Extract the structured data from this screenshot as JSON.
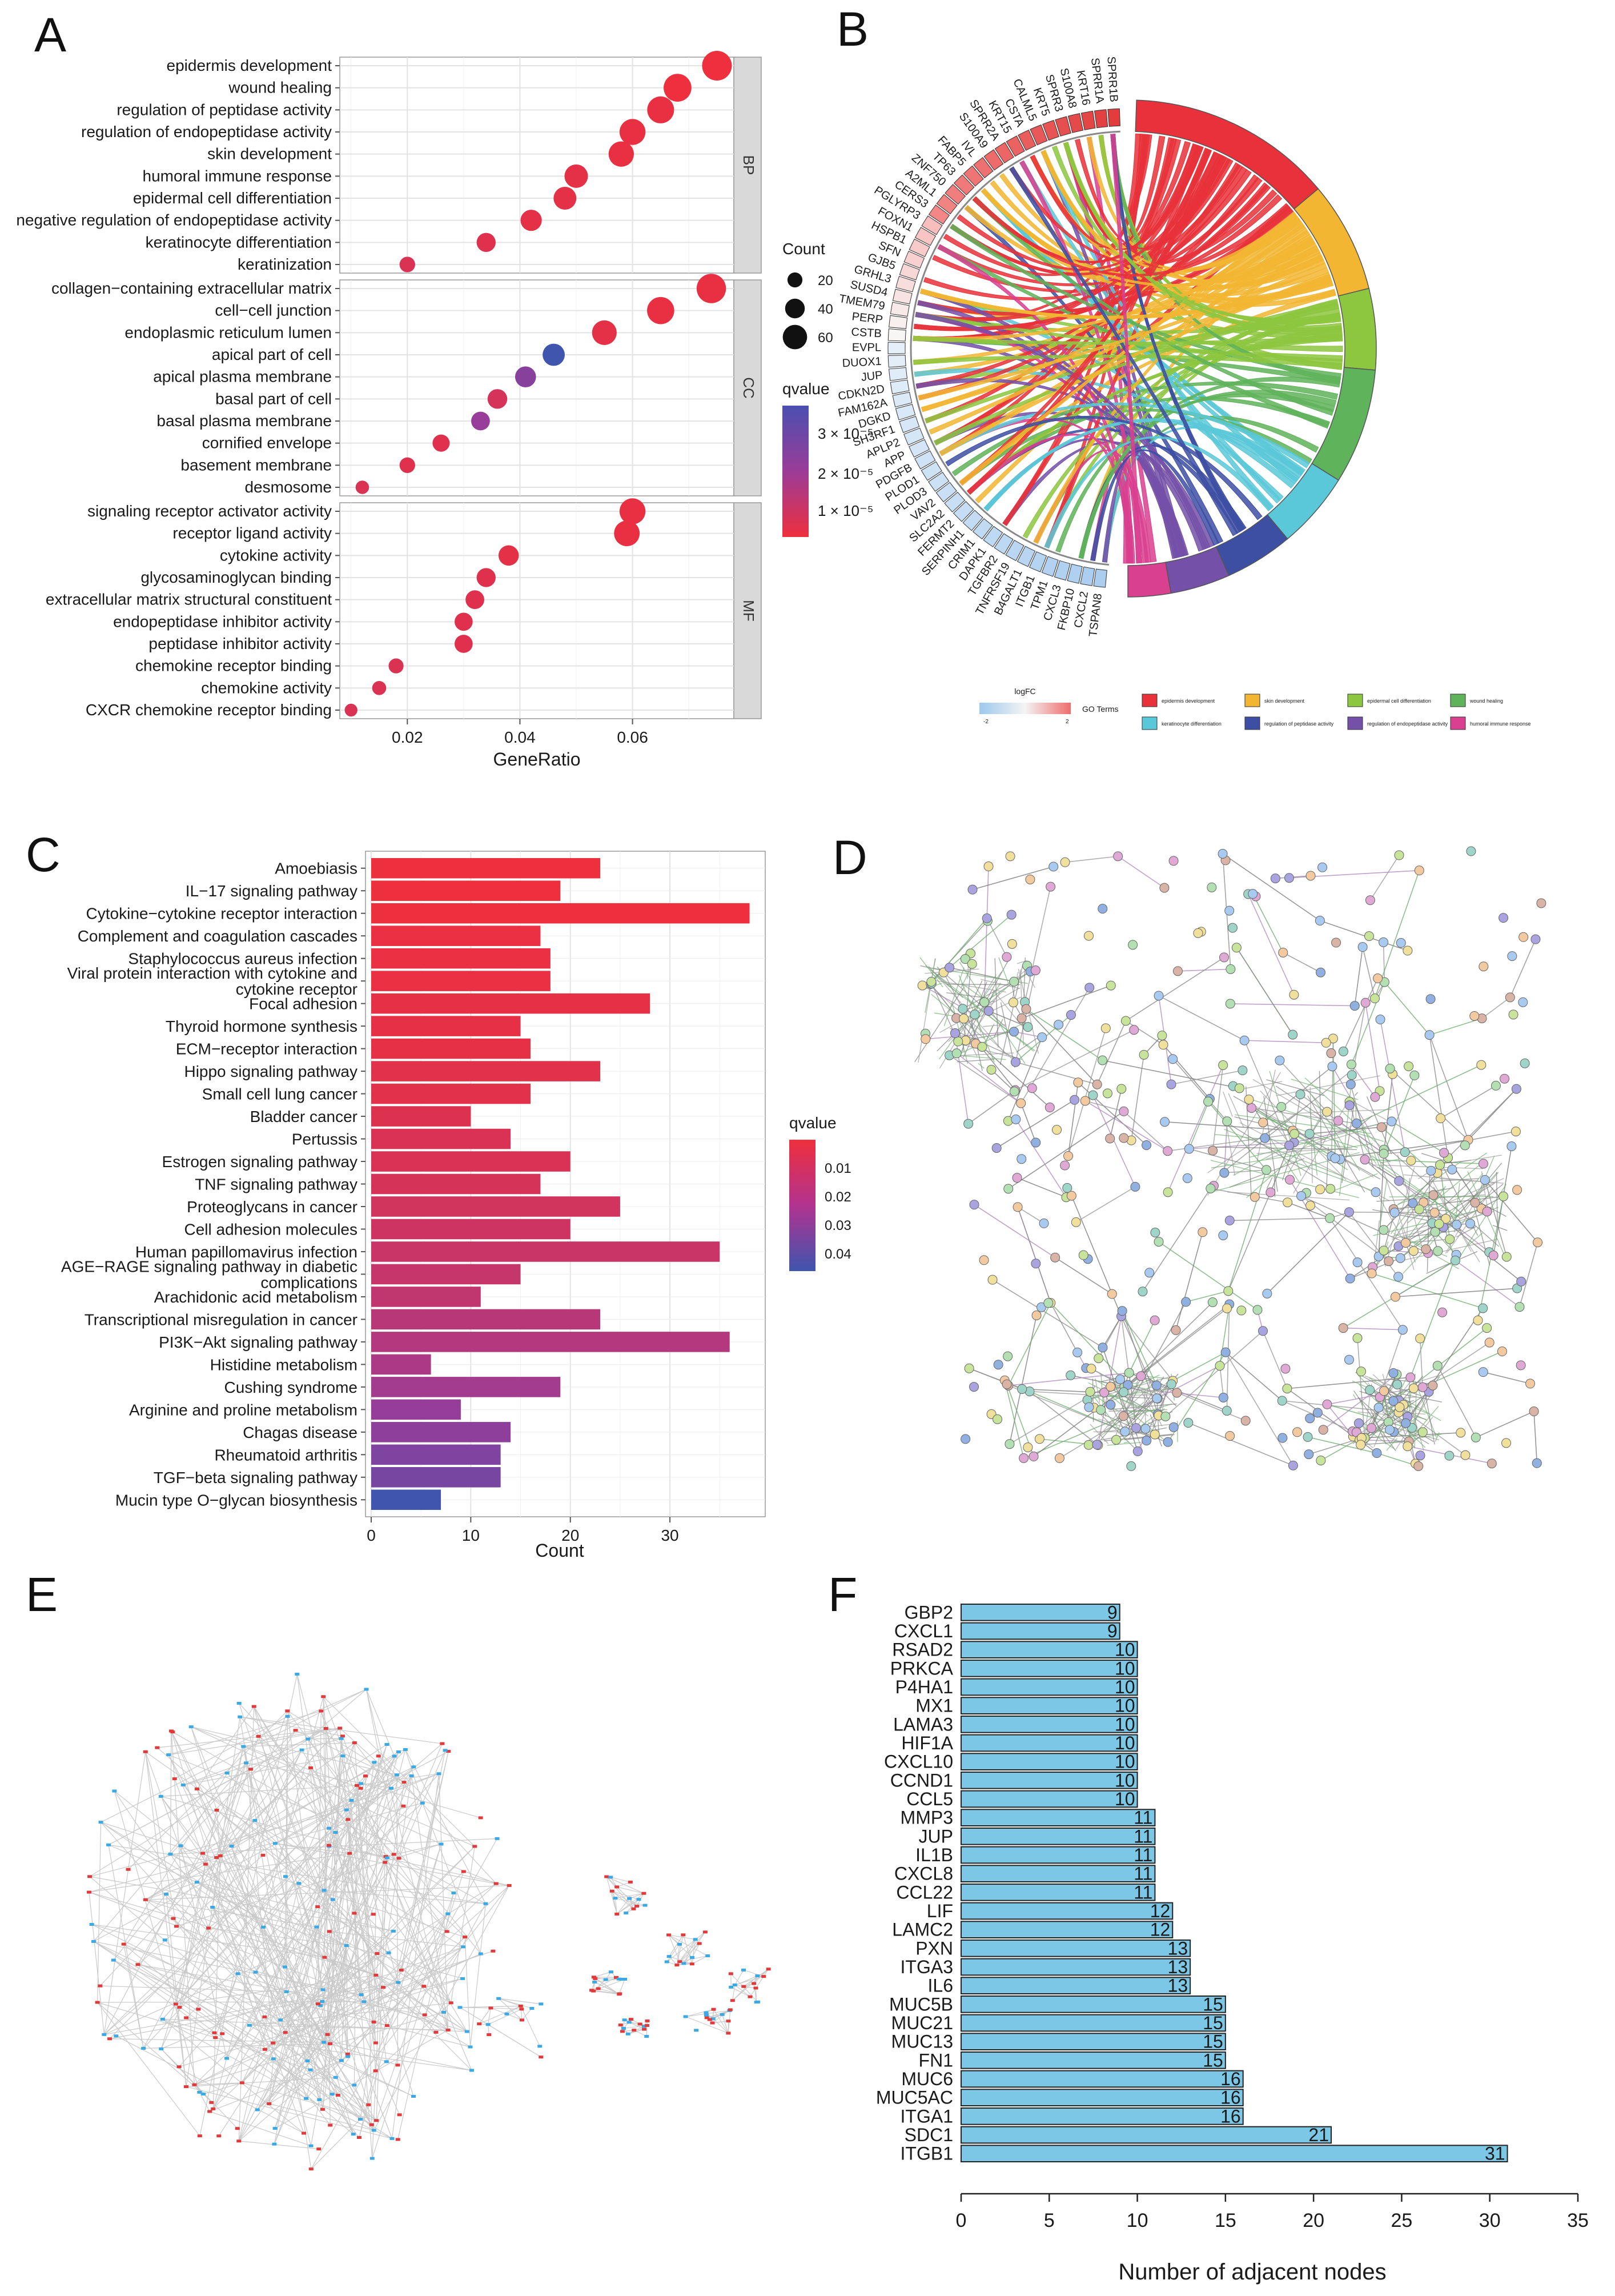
{
  "panels": {
    "a": "A",
    "b": "B",
    "c": "C",
    "d": "D",
    "e": "E",
    "f": "F"
  },
  "chart_data": [
    {
      "panel": "A",
      "type": "scatter",
      "xlabel": "GeneRatio",
      "xlim": [
        0.008,
        0.078
      ],
      "xticks": [
        "0.02",
        "0.04",
        "0.06"
      ],
      "legend_count_title": "Count",
      "legend_count_values": [
        "20",
        "40",
        "60"
      ],
      "legend_color_title": "qvalue",
      "legend_color_labels": [
        "3 × 10⁻⁵",
        "2 × 10⁻⁵",
        "1 × 10⁻⁵"
      ],
      "groups": [
        {
          "name": "BP",
          "terms": [
            {
              "term": "epidermis development",
              "ratio": 0.075,
              "count": 62,
              "q": 5e-06
            },
            {
              "term": "wound healing",
              "ratio": 0.068,
              "count": 56,
              "q": 5e-06
            },
            {
              "term": "regulation of peptidase activity",
              "ratio": 0.065,
              "count": 53,
              "q": 6e-06
            },
            {
              "term": "regulation of endopeptidase activity",
              "ratio": 0.06,
              "count": 50,
              "q": 6e-06
            },
            {
              "term": "skin development",
              "ratio": 0.058,
              "count": 48,
              "q": 6e-06
            },
            {
              "term": "humoral immune response",
              "ratio": 0.05,
              "count": 42,
              "q": 7e-06
            },
            {
              "term": "epidermal cell differentiation",
              "ratio": 0.048,
              "count": 40,
              "q": 7e-06
            },
            {
              "term": "negative regulation of endopeptidase activity",
              "ratio": 0.042,
              "count": 35,
              "q": 7e-06
            },
            {
              "term": "keratinocyte differentiation",
              "ratio": 0.034,
              "count": 28,
              "q": 8e-06
            },
            {
              "term": "keratinization",
              "ratio": 0.02,
              "count": 17,
              "q": 9e-06
            }
          ]
        },
        {
          "name": "CC",
          "terms": [
            {
              "term": "collagen−containing extracellular matrix",
              "ratio": 0.074,
              "count": 61,
              "q": 6e-06
            },
            {
              "term": "cell−cell junction",
              "ratio": 0.065,
              "count": 54,
              "q": 6e-06
            },
            {
              "term": "endoplasmic reticulum lumen",
              "ratio": 0.055,
              "count": 46,
              "q": 7e-06
            },
            {
              "term": "apical part of cell",
              "ratio": 0.046,
              "count": 38,
              "q": 3.8e-05
            },
            {
              "term": "apical plasma membrane",
              "ratio": 0.041,
              "count": 34,
              "q": 2.5e-05
            },
            {
              "term": "basal part of cell",
              "ratio": 0.036,
              "count": 30,
              "q": 1e-05
            },
            {
              "term": "basal plasma membrane",
              "ratio": 0.033,
              "count": 27,
              "q": 2.2e-05
            },
            {
              "term": "cornified envelope",
              "ratio": 0.026,
              "count": 22,
              "q": 8e-06
            },
            {
              "term": "basement membrane",
              "ratio": 0.02,
              "count": 17,
              "q": 8e-06
            },
            {
              "term": "desmosome",
              "ratio": 0.012,
              "count": 10,
              "q": 9e-06
            }
          ]
        },
        {
          "name": "MF",
          "terms": [
            {
              "term": "signaling receptor activator activity",
              "ratio": 0.06,
              "count": 50,
              "q": 6e-06
            },
            {
              "term": "receptor ligand activity",
              "ratio": 0.059,
              "count": 49,
              "q": 6e-06
            },
            {
              "term": "cytokine activity",
              "ratio": 0.038,
              "count": 32,
              "q": 7e-06
            },
            {
              "term": "glycosaminoglycan binding",
              "ratio": 0.034,
              "count": 28,
              "q": 8e-06
            },
            {
              "term": "extracellular matrix structural constituent",
              "ratio": 0.032,
              "count": 27,
              "q": 8e-06
            },
            {
              "term": "endopeptidase inhibitor activity",
              "ratio": 0.03,
              "count": 25,
              "q": 8e-06
            },
            {
              "term": "peptidase inhibitor activity",
              "ratio": 0.03,
              "count": 25,
              "q": 8e-06
            },
            {
              "term": "chemokine receptor binding",
              "ratio": 0.018,
              "count": 15,
              "q": 9e-06
            },
            {
              "term": "chemokine activity",
              "ratio": 0.015,
              "count": 12,
              "q": 9e-06
            },
            {
              "term": "CXCR chemokine receptor binding",
              "ratio": 0.01,
              "count": 8,
              "q": 9e-06
            }
          ]
        }
      ]
    },
    {
      "panel": "B",
      "type": "chord",
      "genes": [
        "SPRR1B",
        "SPRR1A",
        "KRT16",
        "S100A8",
        "SPRR3",
        "KRT5",
        "CALML5",
        "CSTA",
        "KRT15",
        "SPRR2A",
        "S100A9",
        "IVL",
        "FABP5",
        "TP63",
        "ZNF750",
        "A2ML1",
        "CERS3",
        "PGLYRP3",
        "FOXN1",
        "HSPB1",
        "SFN",
        "GJB5",
        "GRHL3",
        "SUSD4",
        "TMEM79",
        "PERP",
        "CSTB",
        "EVPL",
        "DUOX1",
        "JUP",
        "CDKN2D",
        "FAM162A",
        "DGKD",
        "SH3RF1",
        "APLP2",
        "APP",
        "PDGFB",
        "PLOD1",
        "PLOD3",
        "VAV2",
        "SLC2A2",
        "FERMT2",
        "SERPINH1",
        "CRIM1",
        "DAPK1",
        "TGFBR2",
        "TNFRSF19",
        "B4GALT1",
        "ITGB1",
        "TPM1",
        "CXCL3",
        "FKBP10",
        "CXCL2",
        "TSPAN8"
      ],
      "logfc_title": "logFC",
      "logfc_min": "-2",
      "logfc_max": "2",
      "go_terms_title": "GO Terms",
      "terms": [
        {
          "name": "epidermis development",
          "color": "#e8313a"
        },
        {
          "name": "skin development",
          "color": "#f2b632"
        },
        {
          "name": "epidermal cell differentiation",
          "color": "#8dc63f"
        },
        {
          "name": "wound healing",
          "color": "#5fb35a"
        },
        {
          "name": "keratinocyte differentiation",
          "color": "#5ac8d8"
        },
        {
          "name": "regulation of peptidase activity",
          "color": "#3d4fa3"
        },
        {
          "name": "regulation of endopeptidase activity",
          "color": "#7450a8"
        },
        {
          "name": "humoral immune response",
          "color": "#d9408f"
        }
      ]
    },
    {
      "panel": "C",
      "type": "bar",
      "xlabel": "Count",
      "xlim": [
        0,
        39
      ],
      "xticks": [
        "0",
        "10",
        "20",
        "30"
      ],
      "legend_title": "qvalue",
      "legend_labels": [
        "0.01",
        "0.02",
        "0.03",
        "0.04"
      ],
      "categories": [
        {
          "name": "Amoebiasis",
          "count": 23,
          "q": 0.003
        },
        {
          "name": "IL−17 signaling pathway",
          "count": 19,
          "q": 0.003
        },
        {
          "name": "Cytokine−cytokine receptor interaction",
          "count": 38,
          "q": 0.003
        },
        {
          "name": "Complement and coagulation cascades",
          "count": 17,
          "q": 0.004
        },
        {
          "name": "Staphylococcus aureus infection",
          "count": 18,
          "q": 0.004
        },
        {
          "name": "Viral protein interaction with cytokine and cytokine receptor",
          "count": 18,
          "q": 0.004
        },
        {
          "name": "Focal adhesion",
          "count": 28,
          "q": 0.005
        },
        {
          "name": "Thyroid hormone synthesis",
          "count": 15,
          "q": 0.005
        },
        {
          "name": "ECM−receptor interaction",
          "count": 16,
          "q": 0.005
        },
        {
          "name": "Hippo signaling pathway",
          "count": 23,
          "q": 0.006
        },
        {
          "name": "Small cell lung cancer",
          "count": 16,
          "q": 0.006
        },
        {
          "name": "Bladder cancer",
          "count": 10,
          "q": 0.007
        },
        {
          "name": "Pertussis",
          "count": 14,
          "q": 0.008
        },
        {
          "name": "Estrogen signaling pathway",
          "count": 20,
          "q": 0.008
        },
        {
          "name": "TNF signaling pathway",
          "count": 17,
          "q": 0.009
        },
        {
          "name": "Proteoglycans in cancer",
          "count": 25,
          "q": 0.01
        },
        {
          "name": "Cell adhesion molecules",
          "count": 20,
          "q": 0.011
        },
        {
          "name": "Human papillomavirus infection",
          "count": 35,
          "q": 0.012
        },
        {
          "name": "AGE−RAGE signaling pathway in diabetic complications",
          "count": 15,
          "q": 0.013
        },
        {
          "name": "Arachidonic acid metabolism",
          "count": 11,
          "q": 0.014
        },
        {
          "name": "Transcriptional misregulation in cancer",
          "count": 23,
          "q": 0.016
        },
        {
          "name": "PI3K−Akt signaling pathway",
          "count": 36,
          "q": 0.017
        },
        {
          "name": "Histidine metabolism",
          "count": 6,
          "q": 0.019
        },
        {
          "name": "Cushing syndrome",
          "count": 19,
          "q": 0.021
        },
        {
          "name": "Arginine and proline metabolism",
          "count": 9,
          "q": 0.024
        },
        {
          "name": "Chagas disease",
          "count": 14,
          "q": 0.026
        },
        {
          "name": "Rheumatoid arthritis",
          "count": 13,
          "q": 0.029
        },
        {
          "name": "TGF−beta signaling pathway",
          "count": 13,
          "q": 0.031
        },
        {
          "name": "Mucin type O−glycan biosynthesis",
          "count": 7,
          "q": 0.043
        }
      ]
    },
    {
      "panel": "F",
      "type": "bar",
      "xlabel": "Number of adjacent nodes",
      "xlim": [
        0,
        35
      ],
      "xticks": [
        "0",
        "5",
        "10",
        "15",
        "20",
        "25",
        "30",
        "35"
      ],
      "bar_color": "#7dc7e6",
      "categories": [
        "GBP2",
        "CXCL1",
        "RSAD2",
        "PRKCA",
        "P4HA1",
        "MX1",
        "LAMA3",
        "HIF1A",
        "CXCL10",
        "CCND1",
        "CCL5",
        "MMP3",
        "JUP",
        "IL1B",
        "CXCL8",
        "CCL22",
        "LIF",
        "LAMC2",
        "PXN",
        "ITGA3",
        "IL6",
        "MUC5B",
        "MUC21",
        "MUC13",
        "FN1",
        "MUC6",
        "MUC5AC",
        "ITGA1",
        "SDC1",
        "ITGB1"
      ],
      "values": [
        9,
        9,
        10,
        10,
        10,
        10,
        10,
        10,
        10,
        10,
        10,
        11,
        11,
        11,
        11,
        11,
        12,
        12,
        13,
        13,
        13,
        15,
        15,
        15,
        15,
        16,
        16,
        16,
        21,
        31
      ]
    }
  ]
}
